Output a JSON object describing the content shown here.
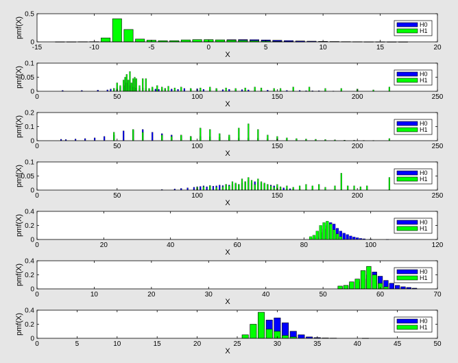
{
  "legend": {
    "h0": "H0",
    "h1": "H1",
    "placement": "top-right"
  },
  "colors": {
    "h0": "#0000ff",
    "h1": "#00ff00",
    "edge": "#000000",
    "axes_bg": "#ffffff",
    "figure_bg": "#e6e6e6"
  },
  "chart_data": [
    {
      "type": "bar",
      "xlabel": "X",
      "ylabel": "pmf(X)",
      "xlim": [
        -15,
        20
      ],
      "ylim": [
        0,
        0.5
      ],
      "xticks": [
        -15,
        -10,
        -5,
        0,
        5,
        10,
        15,
        20
      ],
      "xtick_labels": [
        "-15",
        "-10",
        "-5",
        "0",
        "5",
        "10",
        "15",
        "20"
      ],
      "yticks": [
        0,
        0.5
      ],
      "ytick_labels": [
        "0",
        "0.5"
      ],
      "series": [
        {
          "name": "H0",
          "x": [
            -13,
            -12,
            -11,
            -10,
            -9,
            -8,
            -7,
            -6,
            -5,
            -4,
            -3,
            -2,
            -1,
            0,
            1,
            2,
            3,
            4,
            5,
            6,
            7,
            8,
            9,
            10,
            11,
            12,
            13,
            14,
            15,
            16,
            17
          ],
          "values": [
            0.002,
            0.002,
            0.003,
            0.004,
            0.005,
            0.006,
            0.008,
            0.01,
            0.012,
            0.015,
            0.018,
            0.022,
            0.026,
            0.03,
            0.034,
            0.038,
            0.04,
            0.038,
            0.034,
            0.028,
            0.022,
            0.016,
            0.012,
            0.008,
            0.006,
            0.004,
            0.003,
            0.002,
            0.002,
            0.001,
            0.001
          ]
        },
        {
          "name": "H1",
          "x": [
            -9,
            -8,
            -7,
            -6,
            -5,
            -4,
            -3,
            -2,
            -1,
            0,
            1,
            2,
            3,
            4,
            5,
            6,
            7,
            8
          ],
          "values": [
            0.07,
            0.41,
            0.22,
            0.05,
            0.03,
            0.02,
            0.02,
            0.035,
            0.04,
            0.04,
            0.035,
            0.03,
            0.025,
            0.02,
            0.015,
            0.01,
            0.005,
            0.003
          ]
        }
      ]
    },
    {
      "type": "bar",
      "xlabel": "X",
      "ylabel": "pmf(X)",
      "xlim": [
        0,
        250
      ],
      "ylim": [
        0,
        0.1
      ],
      "xticks": [
        0,
        50,
        100,
        150,
        200,
        250
      ],
      "xtick_labels": [
        "0",
        "50",
        "100",
        "150",
        "200",
        "250"
      ],
      "yticks": [
        0,
        0.05,
        0.1
      ],
      "ytick_labels": [
        "0",
        "0.05",
        "0.1"
      ],
      "series": [
        {
          "name": "H0",
          "x": [
            16,
            28,
            38,
            44,
            46,
            48,
            50,
            52,
            54,
            56,
            58,
            60,
            62,
            64,
            66,
            68,
            70,
            72,
            74,
            76,
            78,
            80,
            84,
            88,
            92,
            96,
            100,
            104,
            108,
            112,
            116,
            120,
            124,
            128,
            132,
            136,
            140,
            144,
            148,
            152,
            156,
            160,
            164,
            168,
            172,
            176,
            180,
            185,
            190,
            200,
            210,
            220
          ],
          "values": [
            0.003,
            0.003,
            0.004,
            0.005,
            0.008,
            0.01,
            0.012,
            0.015,
            0.02,
            0.03,
            0.02,
            0.015,
            0.012,
            0.01,
            0.012,
            0.01,
            0.008,
            0.01,
            0.008,
            0.007,
            0.006,
            0.01,
            0.008,
            0.007,
            0.01,
            0.008,
            0.009,
            0.007,
            0.006,
            0.008,
            0.006,
            0.007,
            0.005,
            0.006,
            0.005,
            0.004,
            0.005,
            0.004,
            0.003,
            0.004,
            0.003,
            0.002,
            0.003,
            0.002,
            0.002,
            0.002,
            0.002,
            0.001,
            0.001,
            0.001,
            0.001,
            0.001
          ]
        },
        {
          "name": "H1",
          "x": [
            48,
            50,
            52,
            54,
            55,
            56,
            57,
            58,
            59,
            60,
            61,
            62,
            64,
            66,
            68,
            70,
            72,
            75,
            78,
            80,
            82,
            86,
            90,
            96,
            102,
            108,
            112,
            118,
            124,
            130,
            136,
            140,
            148,
            152,
            160,
            170,
            180,
            190,
            200,
            210,
            220
          ],
          "values": [
            0.01,
            0.03,
            0.02,
            0.04,
            0.05,
            0.06,
            0.04,
            0.07,
            0.03,
            0.045,
            0.05,
            0.045,
            0.02,
            0.045,
            0.045,
            0.01,
            0.015,
            0.02,
            0.015,
            0.01,
            0.018,
            0.012,
            0.015,
            0.01,
            0.012,
            0.015,
            0.01,
            0.012,
            0.01,
            0.012,
            0.015,
            0.012,
            0.01,
            0.01,
            0.015,
            0.015,
            0.01,
            0.01,
            0.008,
            0.005,
            0.015
          ]
        }
      ]
    },
    {
      "type": "bar",
      "xlabel": "X",
      "ylabel": "pmf(X)",
      "xlim": [
        0,
        250
      ],
      "ylim": [
        0,
        0.2
      ],
      "xticks": [
        0,
        50,
        100,
        150,
        200,
        250
      ],
      "xtick_labels": [
        "0",
        "50",
        "100",
        "150",
        "200",
        "250"
      ],
      "yticks": [
        0,
        0.1,
        0.2
      ],
      "ytick_labels": [
        "0",
        "0.1",
        "0.2"
      ],
      "series": [
        {
          "name": "H0",
          "x": [
            15,
            18,
            24,
            30,
            36,
            42,
            48,
            54,
            60,
            66,
            72,
            78,
            84,
            90,
            96,
            102,
            108,
            114,
            120,
            126,
            132,
            138,
            144,
            150,
            156,
            162,
            168,
            174,
            180,
            186,
            192,
            198,
            204,
            210
          ],
          "values": [
            0.01,
            0.008,
            0.012,
            0.015,
            0.02,
            0.03,
            0.04,
            0.07,
            0.075,
            0.08,
            0.06,
            0.05,
            0.04,
            0.035,
            0.03,
            0.03,
            0.028,
            0.025,
            0.025,
            0.02,
            0.02,
            0.018,
            0.015,
            0.013,
            0.012,
            0.01,
            0.008,
            0.006,
            0.005,
            0.004,
            0.003,
            0.002,
            0.002,
            0.001
          ]
        },
        {
          "name": "H1",
          "x": [
            48,
            60,
            66,
            78,
            84,
            90,
            96,
            102,
            108,
            114,
            120,
            126,
            132,
            138,
            144,
            150,
            156,
            162,
            168,
            174,
            180,
            186,
            192,
            198,
            204,
            210,
            220
          ],
          "values": [
            0.06,
            0.08,
            0.06,
            0.04,
            0.03,
            0.04,
            0.03,
            0.09,
            0.08,
            0.05,
            0.04,
            0.09,
            0.12,
            0.08,
            0.04,
            0.03,
            0.02,
            0.015,
            0.012,
            0.01,
            0.008,
            0.006,
            0.004,
            0.003,
            0.002,
            0.002,
            0.015
          ]
        }
      ]
    },
    {
      "type": "bar",
      "xlabel": "X",
      "ylabel": "pmf(X)",
      "xlim": [
        0,
        250
      ],
      "ylim": [
        0,
        0.1
      ],
      "xticks": [
        0,
        50,
        100,
        150,
        200,
        250
      ],
      "xtick_labels": [
        "0",
        "50",
        "100",
        "150",
        "200",
        "250"
      ],
      "yticks": [
        0,
        0.05,
        0.1
      ],
      "ytick_labels": [
        "0",
        "0.05",
        "0.1"
      ],
      "series": [
        {
          "name": "H0",
          "x": [
            78,
            86,
            90,
            94,
            98,
            100,
            102,
            104,
            106,
            108,
            110,
            112,
            114,
            116,
            118,
            120,
            122,
            124,
            126,
            128,
            130,
            132,
            134,
            136,
            138,
            140,
            142,
            144,
            146,
            148,
            150,
            152,
            154,
            156,
            158,
            160,
            164,
            168,
            172,
            176,
            180
          ],
          "values": [
            0.002,
            0.004,
            0.006,
            0.008,
            0.01,
            0.012,
            0.013,
            0.015,
            0.012,
            0.016,
            0.014,
            0.015,
            0.018,
            0.016,
            0.02,
            0.018,
            0.02,
            0.022,
            0.02,
            0.025,
            0.03,
            0.035,
            0.025,
            0.03,
            0.028,
            0.025,
            0.022,
            0.02,
            0.018,
            0.015,
            0.012,
            0.01,
            0.008,
            0.006,
            0.005,
            0.004,
            0.003,
            0.002,
            0.002,
            0.001,
            0.001
          ]
        },
        {
          "name": "H1",
          "x": [
            100,
            104,
            108,
            112,
            116,
            118,
            120,
            122,
            124,
            126,
            128,
            130,
            132,
            134,
            136,
            138,
            140,
            142,
            144,
            146,
            148,
            150,
            152,
            156,
            160,
            164,
            168,
            172,
            176,
            180,
            186,
            190,
            194,
            198,
            202,
            206,
            220
          ],
          "values": [
            0.01,
            0.012,
            0.015,
            0.01,
            0.012,
            0.02,
            0.015,
            0.03,
            0.025,
            0.02,
            0.04,
            0.03,
            0.045,
            0.035,
            0.02,
            0.04,
            0.03,
            0.025,
            0.02,
            0.015,
            0.01,
            0.02,
            0.012,
            0.015,
            0.01,
            0.015,
            0.02,
            0.015,
            0.02,
            0.01,
            0.015,
            0.06,
            0.015,
            0.015,
            0.012,
            0.015,
            0.045
          ]
        }
      ]
    },
    {
      "type": "bar",
      "xlabel": "X",
      "ylabel": "pmf(X)",
      "xlim": [
        0,
        120
      ],
      "ylim": [
        0,
        0.4
      ],
      "xticks": [
        0,
        20,
        40,
        60,
        80,
        100,
        120
      ],
      "xtick_labels": [
        "0",
        "20",
        "40",
        "60",
        "80",
        "100",
        "120"
      ],
      "yticks": [
        0,
        0.2,
        0.4
      ],
      "ytick_labels": [
        "0",
        "0.2",
        "0.4"
      ],
      "series": [
        {
          "name": "H0",
          "x": [
            82,
            83,
            84,
            85,
            86,
            87,
            88,
            89,
            90,
            91,
            92,
            93,
            94,
            95,
            96,
            97,
            98,
            100,
            105
          ],
          "values": [
            0.01,
            0.02,
            0.04,
            0.1,
            0.15,
            0.2,
            0.24,
            0.22,
            0.16,
            0.12,
            0.09,
            0.07,
            0.05,
            0.035,
            0.025,
            0.015,
            0.01,
            0.005,
            0.002
          ]
        },
        {
          "name": "H1",
          "x": [
            82,
            83,
            84,
            85,
            86,
            87,
            88,
            89,
            90,
            91
          ],
          "values": [
            0.04,
            0.06,
            0.12,
            0.2,
            0.24,
            0.26,
            0.22,
            0.14,
            0.08,
            0.04
          ]
        }
      ]
    },
    {
      "type": "bar",
      "xlabel": "X",
      "ylabel": "pmf(X)",
      "xlim": [
        0,
        70
      ],
      "ylim": [
        0,
        0.4
      ],
      "xticks": [
        0,
        10,
        20,
        30,
        40,
        50,
        60,
        70
      ],
      "xtick_labels": [
        "0",
        "10",
        "20",
        "30",
        "40",
        "50",
        "60",
        "70"
      ],
      "yticks": [
        0,
        0.2,
        0.4
      ],
      "ytick_labels": [
        "0",
        "0.2",
        "0.4"
      ],
      "series": [
        {
          "name": "H0",
          "x": [
            53,
            54,
            55,
            56,
            57,
            58,
            59,
            60,
            61,
            62,
            63,
            64,
            65,
            66
          ],
          "values": [
            0.02,
            0.04,
            0.07,
            0.1,
            0.14,
            0.2,
            0.24,
            0.18,
            0.12,
            0.08,
            0.05,
            0.03,
            0.02,
            0.01
          ]
        },
        {
          "name": "H1",
          "x": [
            53,
            54,
            55,
            56,
            57,
            58,
            59,
            60,
            61
          ],
          "values": [
            0.04,
            0.05,
            0.1,
            0.14,
            0.26,
            0.32,
            0.2,
            0.08,
            0.03
          ]
        }
      ]
    },
    {
      "type": "bar",
      "xlabel": "X",
      "ylabel": "pmf(X)",
      "xlim": [
        0,
        50
      ],
      "ylim": [
        0,
        0.4
      ],
      "xticks": [
        0,
        5,
        10,
        15,
        20,
        25,
        30,
        35,
        40,
        45,
        50
      ],
      "xtick_labels": [
        "0",
        "5",
        "10",
        "15",
        "20",
        "25",
        "30",
        "35",
        "40",
        "45",
        "50"
      ],
      "yticks": [
        0,
        0.2,
        0.4
      ],
      "ytick_labels": [
        "0",
        "0.2",
        "0.4"
      ],
      "series": [
        {
          "name": "H0",
          "x": [
            28,
            29,
            30,
            31,
            32,
            33,
            34,
            35,
            36,
            37,
            41
          ],
          "values": [
            0.1,
            0.26,
            0.29,
            0.22,
            0.1,
            0.05,
            0.02,
            0.01,
            0.005,
            0.003,
            0.002
          ]
        },
        {
          "name": "H1",
          "x": [
            26,
            27,
            28,
            29,
            30,
            31,
            32
          ],
          "values": [
            0.05,
            0.2,
            0.37,
            0.13,
            0.1,
            0.04,
            0.02
          ]
        }
      ]
    }
  ]
}
